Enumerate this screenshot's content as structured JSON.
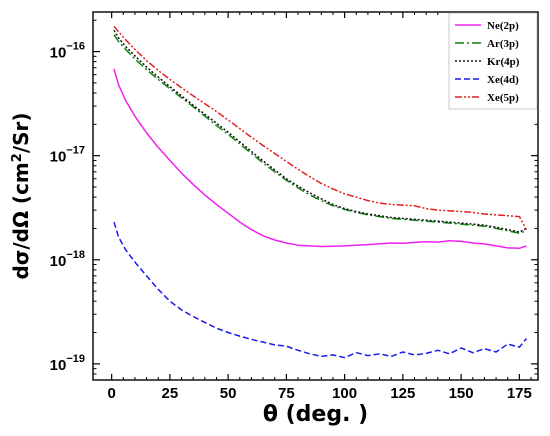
{
  "chart_data": {
    "type": "line",
    "title": "",
    "xlabel": "θ (deg. )",
    "ylabel_parts": {
      "main": "dσ/dΩ (cm",
      "sup": "2",
      "tail": "/Sr)"
    },
    "yscale": "log",
    "xlim": [
      -8,
      183
    ],
    "ylim": [
      7e-20,
      2.4e-16
    ],
    "xticks": [
      0,
      25,
      50,
      75,
      100,
      125,
      150,
      175
    ],
    "yticks": [
      {
        "value": 1e-19,
        "base": "10",
        "exp": "−19"
      },
      {
        "value": 1e-18,
        "base": "10",
        "exp": "−18"
      },
      {
        "value": 1e-17,
        "base": "10",
        "exp": "−17"
      },
      {
        "value": 1e-16,
        "base": "10",
        "exp": "−16"
      }
    ],
    "grid": false,
    "legend_position": "top-right",
    "series": [
      {
        "name": "Ne(2p)",
        "color": "#ee22ee",
        "dash": "none",
        "x": [
          1,
          3,
          6,
          10,
          15,
          20,
          25,
          30,
          35,
          40,
          45,
          50,
          55,
          60,
          65,
          70,
          75,
          80,
          85,
          90,
          95,
          100,
          105,
          110,
          115,
          120,
          125,
          130,
          135,
          140,
          145,
          150,
          155,
          160,
          165,
          170,
          175,
          178
        ],
        "y": [
          6.8e-17,
          4.8e-17,
          3.4e-17,
          2.4e-17,
          1.65e-17,
          1.2e-17,
          9e-18,
          6.8e-18,
          5.3e-18,
          4.2e-18,
          3.4e-18,
          2.8e-18,
          2.3e-18,
          1.95e-18,
          1.7e-18,
          1.55e-18,
          1.45e-18,
          1.38e-18,
          1.36e-18,
          1.34e-18,
          1.35e-18,
          1.36e-18,
          1.38e-18,
          1.4e-18,
          1.42e-18,
          1.45e-18,
          1.44e-18,
          1.47e-18,
          1.49e-18,
          1.48e-18,
          1.52e-18,
          1.5e-18,
          1.45e-18,
          1.42e-18,
          1.36e-18,
          1.3e-18,
          1.29e-18,
          1.36e-18
        ]
      },
      {
        "name": "Ar(3p)",
        "color": "#108010",
        "dash": "9,3,2,3",
        "x": [
          1,
          3,
          6,
          10,
          15,
          20,
          25,
          30,
          35,
          40,
          45,
          50,
          55,
          60,
          65,
          70,
          75,
          80,
          85,
          90,
          95,
          100,
          105,
          110,
          115,
          120,
          125,
          130,
          135,
          140,
          145,
          150,
          155,
          160,
          165,
          170,
          175,
          178
        ],
        "y": [
          1.45e-16,
          1.25e-16,
          1.05e-16,
          8.5e-17,
          6.7e-17,
          5.4e-17,
          4.4e-17,
          3.6e-17,
          2.95e-17,
          2.4e-17,
          1.95e-17,
          1.6e-17,
          1.3e-17,
          1.05e-17,
          8.5e-18,
          7e-18,
          5.8e-18,
          4.9e-18,
          4.2e-18,
          3.7e-18,
          3.3e-18,
          3.05e-18,
          2.85e-18,
          2.7e-18,
          2.6e-18,
          2.5e-18,
          2.45e-18,
          2.4e-18,
          2.35e-18,
          2.3e-18,
          2.25e-18,
          2.2e-18,
          2.15e-18,
          2.1e-18,
          2e-18,
          1.9e-18,
          1.8e-18,
          1.9e-18
        ]
      },
      {
        "name": "Kr(4p)",
        "color": "#111111",
        "dash": "2,2",
        "x": [
          1,
          3,
          6,
          10,
          15,
          20,
          25,
          30,
          35,
          40,
          45,
          50,
          55,
          60,
          65,
          70,
          75,
          80,
          85,
          90,
          95,
          100,
          105,
          110,
          115,
          120,
          125,
          130,
          135,
          140,
          145,
          150,
          155,
          160,
          165,
          170,
          175,
          178
        ],
        "y": [
          1.6e-16,
          1.35e-16,
          1.12e-16,
          9.1e-17,
          7.1e-17,
          5.7e-17,
          4.6e-17,
          3.75e-17,
          3.05e-17,
          2.5e-17,
          2.05e-17,
          1.68e-17,
          1.36e-17,
          1.1e-17,
          8.9e-18,
          7.3e-18,
          6e-18,
          5.1e-18,
          4.4e-18,
          3.85e-18,
          3.4e-18,
          3.1e-18,
          2.9e-18,
          2.75e-18,
          2.65e-18,
          2.55e-18,
          2.5e-18,
          2.45e-18,
          2.4e-18,
          2.35e-18,
          2.3e-18,
          2.25e-18,
          2.2e-18,
          2.15e-18,
          2.05e-18,
          1.95e-18,
          1.85e-18,
          2e-18
        ]
      },
      {
        "name": "Xe(4d)",
        "color": "#1a1aee",
        "dash": "6,3",
        "x": [
          1,
          3,
          6,
          10,
          15,
          20,
          25,
          30,
          35,
          40,
          45,
          50,
          55,
          60,
          65,
          70,
          75,
          80,
          85,
          90,
          95,
          100,
          105,
          110,
          115,
          120,
          125,
          130,
          135,
          140,
          145,
          150,
          155,
          160,
          165,
          170,
          175,
          178
        ],
        "y": [
          2.3e-18,
          1.65e-18,
          1.25e-18,
          9.5e-19,
          7e-19,
          5.2e-19,
          4e-19,
          3.3e-19,
          2.85e-19,
          2.5e-19,
          2.2e-19,
          2e-19,
          1.85e-19,
          1.72e-19,
          1.62e-19,
          1.52e-19,
          1.48e-19,
          1.35e-19,
          1.25e-19,
          1.18e-19,
          1.22e-19,
          1.15e-19,
          1.28e-19,
          1.2e-19,
          1.25e-19,
          1.18e-19,
          1.3e-19,
          1.22e-19,
          1.26e-19,
          1.35e-19,
          1.25e-19,
          1.42e-19,
          1.28e-19,
          1.4e-19,
          1.3e-19,
          1.55e-19,
          1.45e-19,
          1.75e-19
        ]
      },
      {
        "name": "Xe(5p)",
        "color": "#e02020",
        "dash": "7,2,2,2,2,2",
        "x": [
          1,
          3,
          6,
          10,
          15,
          20,
          25,
          30,
          35,
          40,
          45,
          50,
          55,
          60,
          65,
          70,
          75,
          80,
          85,
          90,
          95,
          100,
          105,
          110,
          115,
          120,
          125,
          130,
          135,
          140,
          145,
          150,
          155,
          160,
          165,
          170,
          175,
          178
        ],
        "y": [
          1.75e-16,
          1.55e-16,
          1.3e-16,
          1.05e-16,
          8.2e-17,
          6.6e-17,
          5.4e-17,
          4.5e-17,
          3.75e-17,
          3.15e-17,
          2.65e-17,
          2.2e-17,
          1.82e-17,
          1.5e-17,
          1.25e-17,
          1.05e-17,
          8.8e-18,
          7.4e-18,
          6.3e-18,
          5.4e-18,
          4.8e-18,
          4.3e-18,
          4e-18,
          3.7e-18,
          3.5e-18,
          3.4e-18,
          3.35e-18,
          3.3e-18,
          3.1e-18,
          3e-18,
          2.95e-18,
          2.9e-18,
          2.85e-18,
          2.75e-18,
          2.7e-18,
          2.65e-18,
          2.6e-18,
          1.95e-18
        ]
      }
    ]
  }
}
